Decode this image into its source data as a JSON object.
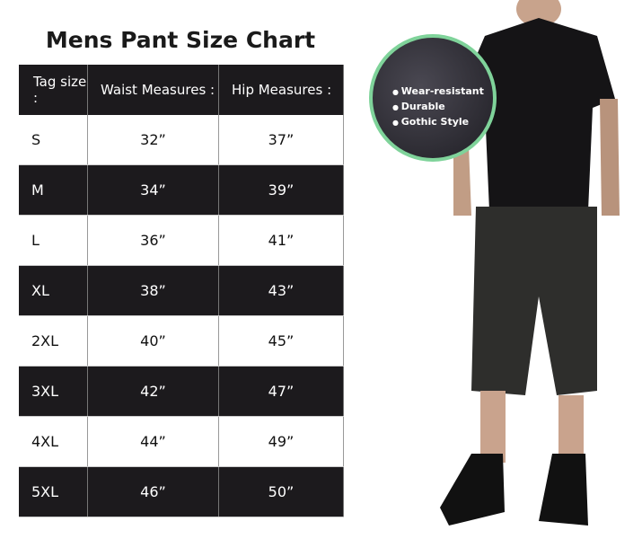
{
  "title": "Mens Pant Size Chart",
  "headers": [
    "Tag size :",
    "Waist Measures :",
    "Hip Measures :"
  ],
  "rows": [
    {
      "size": "S",
      "waist": "32”",
      "hip": "37”"
    },
    {
      "size": "M",
      "waist": "34”",
      "hip": "39”"
    },
    {
      "size": "L",
      "waist": "36”",
      "hip": "41”"
    },
    {
      "size": "XL",
      "waist": "38”",
      "hip": "43”"
    },
    {
      "size": "2XL",
      "waist": "40”",
      "hip": "45”"
    },
    {
      "size": "3XL",
      "waist": "42”",
      "hip": "47”"
    },
    {
      "size": "4XL",
      "waist": "44”",
      "hip": "49”"
    },
    {
      "size": "5XL",
      "waist": "46”",
      "hip": "50”"
    }
  ],
  "features": [
    "Wear-resistant",
    "Durable",
    "Gothic Style"
  ],
  "colors": {
    "dark": "#1c1a1d",
    "badge_ring": "#7fd39a"
  }
}
